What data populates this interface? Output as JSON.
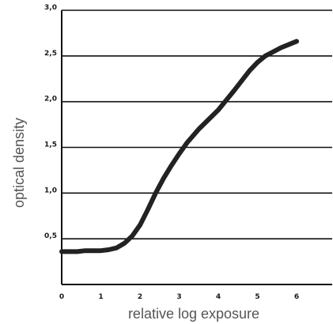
{
  "chart_data": {
    "type": "line",
    "title": "",
    "xlabel": "relative log exposure",
    "ylabel": "optical density",
    "xlim": [
      0,
      7
    ],
    "ylim": [
      0,
      3.0
    ],
    "x_ticks": [
      0,
      1,
      2,
      3,
      4,
      5,
      6
    ],
    "x_tick_labels": [
      "0",
      "1",
      "2",
      "3",
      "4",
      "5",
      "6"
    ],
    "y_ticks": [
      0.5,
      1.0,
      1.5,
      2.0,
      2.5,
      3.0
    ],
    "y_tick_labels": [
      "0,5",
      "1,0",
      "1,5",
      "2,0",
      "2,5",
      "3,0"
    ],
    "grid": "horizontal",
    "series": [
      {
        "x": [
          0,
          0.4,
          0.6,
          1.0,
          1.2,
          1.4,
          1.6,
          1.8,
          2.0,
          2.2,
          2.4,
          2.6,
          2.8,
          3.0,
          3.2,
          3.5,
          4.0,
          4.4,
          4.8,
          5.0,
          5.2,
          5.6,
          6.0
        ],
        "y": [
          0.36,
          0.36,
          0.37,
          0.37,
          0.38,
          0.4,
          0.45,
          0.53,
          0.65,
          0.82,
          1.0,
          1.16,
          1.3,
          1.43,
          1.55,
          1.7,
          1.91,
          2.12,
          2.34,
          2.43,
          2.5,
          2.59,
          2.66
        ]
      }
    ],
    "line_color": "#222222",
    "grid_color": "#111111"
  }
}
